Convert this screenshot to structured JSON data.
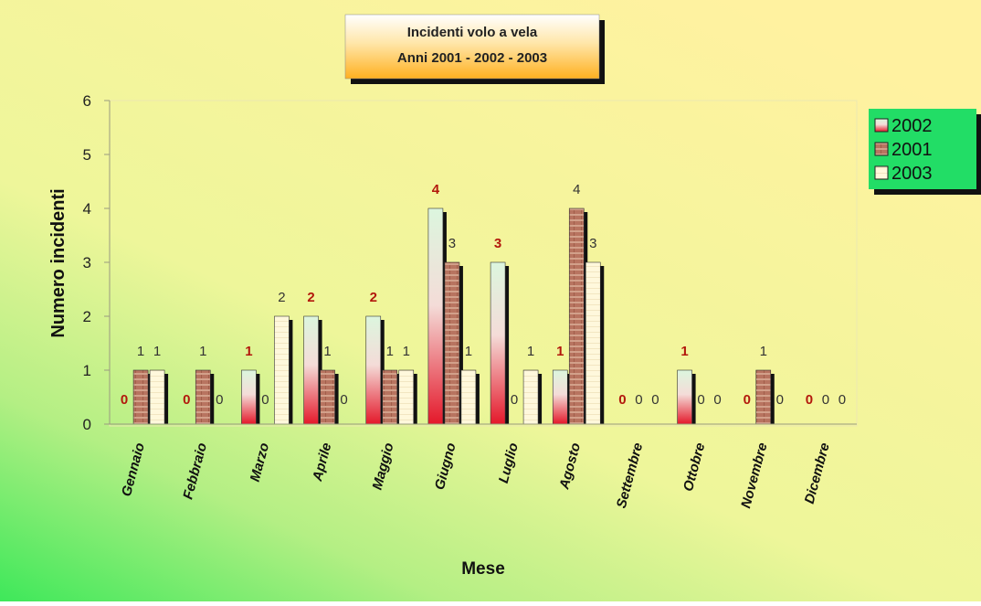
{
  "chart_data": {
    "type": "bar",
    "title": [
      "Incidenti volo a vela",
      "Anni 2001 -  2002 - 2003"
    ],
    "xlabel": "Mese",
    "ylabel": "Numero incidenti",
    "ylim": [
      0,
      6
    ],
    "yticks": [
      "0",
      "1",
      "2",
      "3",
      "4",
      "5",
      "6"
    ],
    "grid": false,
    "legend_position": "right",
    "categories": [
      "Gennaio",
      "Febbraio",
      "Marzo",
      "Aprile",
      "Maggio",
      "Giugno",
      "Luglio",
      "Agosto",
      "Settembre",
      "Ottobre",
      "Novembre",
      "Dicembre"
    ],
    "series": [
      {
        "name": "2002",
        "values": [
          0,
          0,
          1,
          2,
          2,
          4,
          3,
          1,
          0,
          1,
          0,
          0
        ],
        "label_color": "#b2180c"
      },
      {
        "name": "2001",
        "values": [
          1,
          1,
          0,
          1,
          1,
          3,
          0,
          4,
          0,
          0,
          1,
          0
        ],
        "label_color": "#333333"
      },
      {
        "name": "2003",
        "values": [
          1,
          0,
          2,
          0,
          1,
          1,
          1,
          3,
          0,
          0,
          0,
          0
        ],
        "label_color": "#333333"
      }
    ],
    "colors": {
      "s2002_top": "#d8f5dc",
      "s2002_bottom": "#e8202c",
      "s2001": "#b8705c",
      "s2001_stripe": "#d8a48c",
      "s2003": "#fff8dc",
      "legend_bg": "#22dd66",
      "title_bg": "#ffc840"
    }
  }
}
